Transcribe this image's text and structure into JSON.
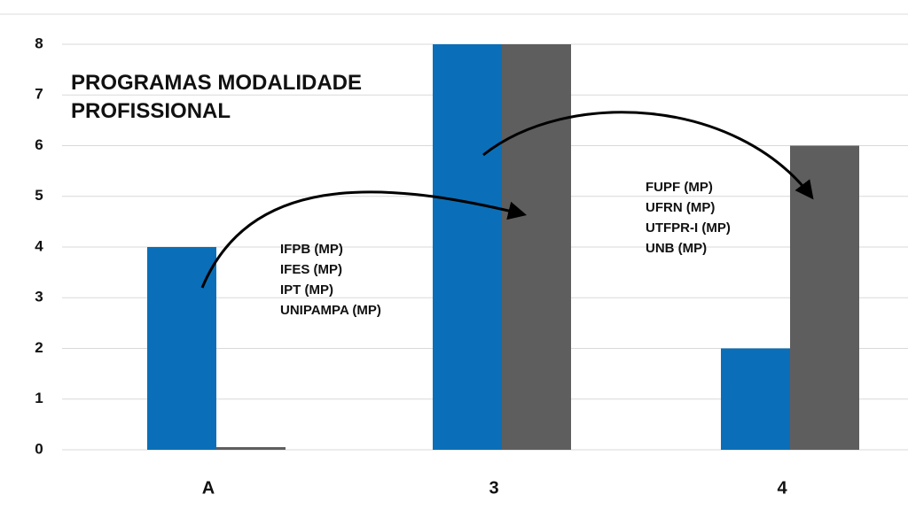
{
  "chart_data": {
    "type": "bar",
    "title": "PROGRAMAS MODALIDADE PROFISSIONAL",
    "categories": [
      "A",
      "3",
      "4"
    ],
    "series": [
      {
        "color": "#0a6fb8",
        "values": [
          4,
          8,
          2
        ]
      },
      {
        "color": "#5e5e5e",
        "values": [
          0,
          8,
          6
        ]
      }
    ],
    "ylim": [
      0,
      8
    ],
    "yticks": [
      0,
      1,
      2,
      3,
      4,
      5,
      6,
      7,
      8
    ],
    "grid": true,
    "annotations": [
      [
        "IFPB (MP)",
        "IFES (MP)",
        "IPT (MP)",
        "UNIPAMPA (MP)"
      ],
      [
        "FUPF (MP)",
        "UFRN (MP)",
        "UTFPR-I (MP)",
        "UNB (MP)"
      ]
    ]
  }
}
